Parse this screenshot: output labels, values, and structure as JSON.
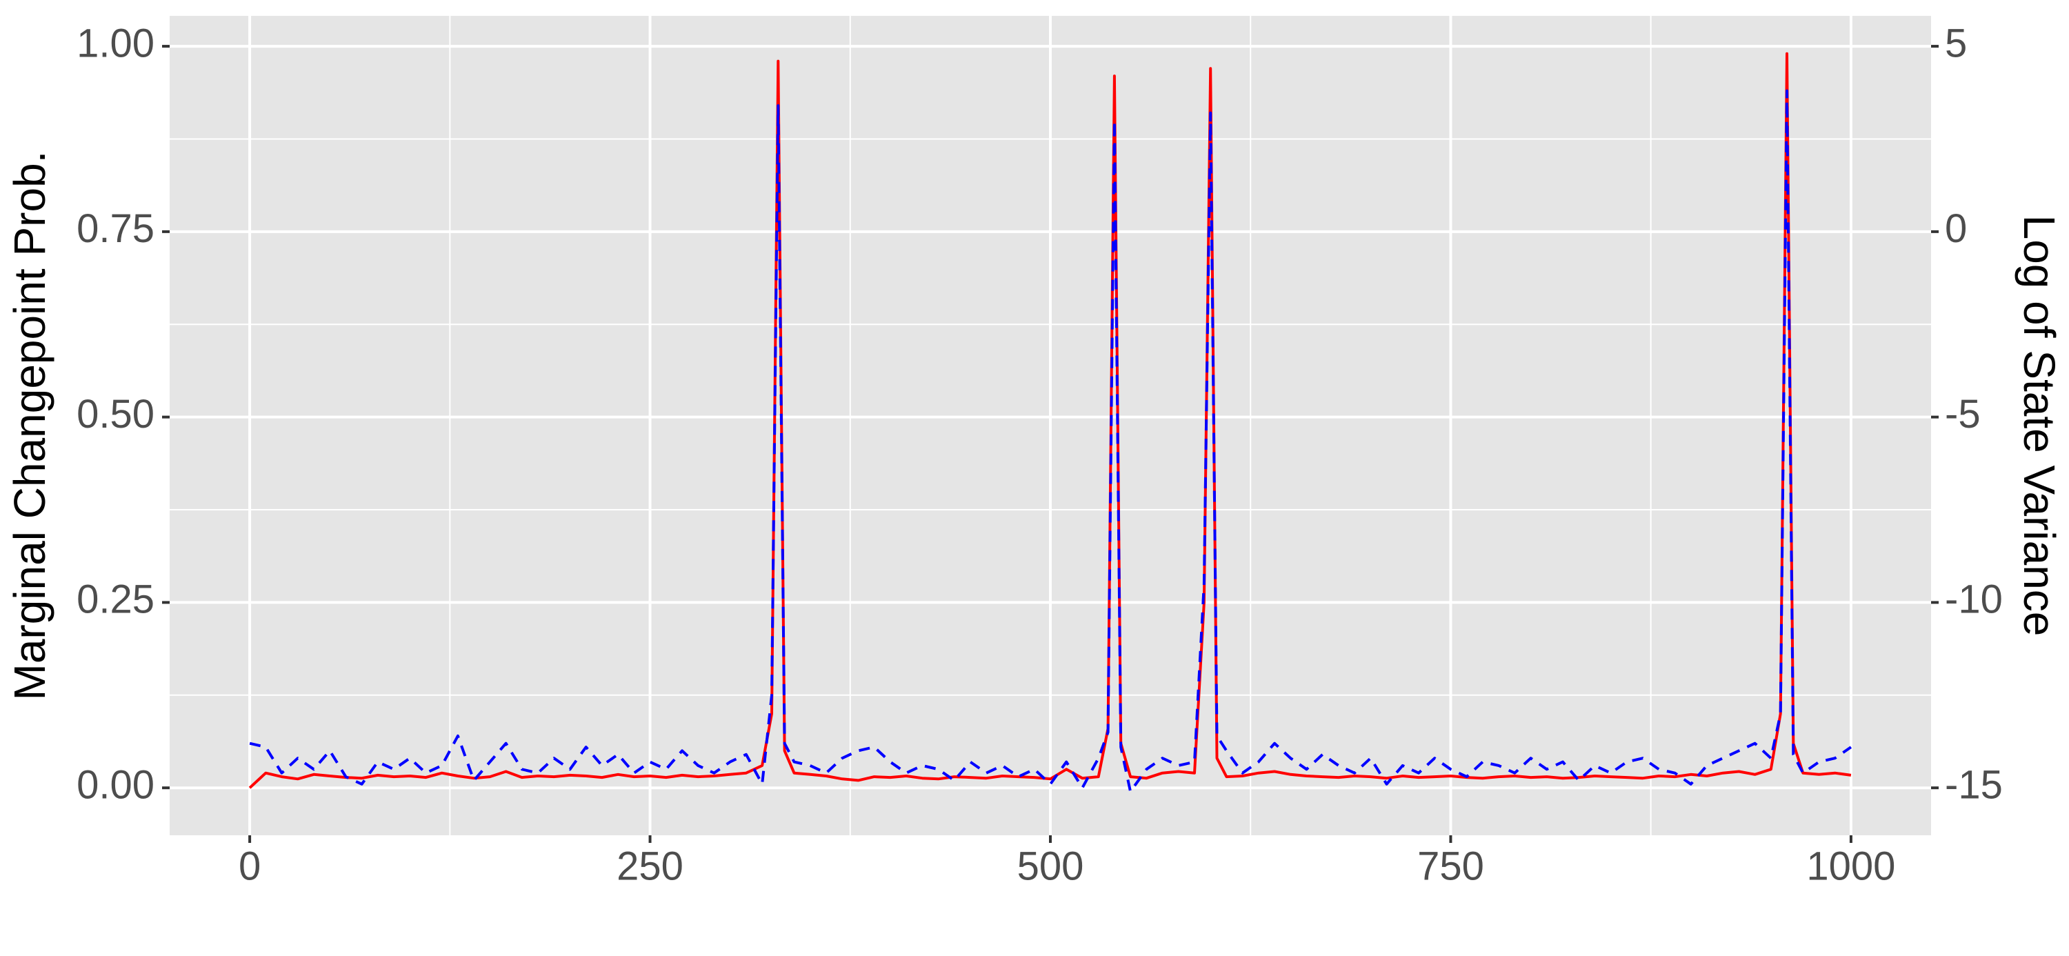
{
  "chart_data": {
    "type": "line",
    "x": [
      0,
      10,
      20,
      30,
      40,
      50,
      60,
      70,
      80,
      90,
      100,
      110,
      120,
      130,
      140,
      150,
      160,
      170,
      180,
      190,
      200,
      210,
      220,
      230,
      240,
      250,
      260,
      270,
      280,
      290,
      300,
      310,
      320,
      326,
      330,
      334,
      340,
      350,
      360,
      370,
      380,
      390,
      400,
      410,
      420,
      430,
      440,
      450,
      460,
      470,
      480,
      490,
      500,
      510,
      520,
      530,
      536,
      540,
      544,
      550,
      560,
      570,
      580,
      590,
      596,
      600,
      604,
      610,
      620,
      630,
      640,
      650,
      660,
      670,
      680,
      690,
      700,
      710,
      720,
      730,
      740,
      750,
      760,
      770,
      780,
      790,
      800,
      810,
      820,
      830,
      840,
      850,
      860,
      870,
      880,
      890,
      900,
      910,
      920,
      930,
      940,
      950,
      956,
      960,
      964,
      970,
      980,
      990,
      1000
    ],
    "series": [
      {
        "color": "#ff0000",
        "linetype": "solid",
        "axis": "y",
        "values": [
          0.0,
          0.02,
          0.015,
          0.012,
          0.018,
          0.016,
          0.014,
          0.013,
          0.017,
          0.015,
          0.016,
          0.014,
          0.02,
          0.016,
          0.013,
          0.015,
          0.022,
          0.014,
          0.016,
          0.015,
          0.017,
          0.016,
          0.014,
          0.018,
          0.015,
          0.016,
          0.014,
          0.017,
          0.015,
          0.016,
          0.018,
          0.02,
          0.03,
          0.1,
          0.98,
          0.05,
          0.02,
          0.018,
          0.016,
          0.012,
          0.01,
          0.015,
          0.014,
          0.016,
          0.013,
          0.012,
          0.015,
          0.014,
          0.013,
          0.016,
          0.015,
          0.014,
          0.012,
          0.025,
          0.013,
          0.015,
          0.08,
          0.96,
          0.06,
          0.015,
          0.013,
          0.02,
          0.022,
          0.02,
          0.25,
          0.97,
          0.04,
          0.015,
          0.016,
          0.02,
          0.022,
          0.018,
          0.016,
          0.015,
          0.014,
          0.016,
          0.015,
          0.013,
          0.016,
          0.014,
          0.015,
          0.016,
          0.014,
          0.013,
          0.015,
          0.016,
          0.014,
          0.015,
          0.013,
          0.014,
          0.016,
          0.015,
          0.014,
          0.013,
          0.016,
          0.015,
          0.018,
          0.016,
          0.02,
          0.022,
          0.018,
          0.025,
          0.1,
          0.99,
          0.06,
          0.02,
          0.018,
          0.02,
          0.017
        ]
      },
      {
        "color": "#0000ff",
        "linetype": "dashed",
        "axis": "y2",
        "values": [
          -13.8,
          -13.9,
          -14.6,
          -14.2,
          -14.5,
          -14.0,
          -14.7,
          -14.9,
          -14.3,
          -14.5,
          -14.2,
          -14.6,
          -14.4,
          -13.6,
          -14.8,
          -14.3,
          -13.8,
          -14.5,
          -14.6,
          -14.2,
          -14.5,
          -13.9,
          -14.4,
          -14.1,
          -14.6,
          -14.3,
          -14.5,
          -14.0,
          -14.4,
          -14.6,
          -14.3,
          -14.1,
          -14.9,
          -12.5,
          3.4,
          -13.8,
          -14.3,
          -14.4,
          -14.6,
          -14.2,
          -14.0,
          -13.9,
          -14.3,
          -14.6,
          -14.4,
          -14.5,
          -14.8,
          -14.3,
          -14.6,
          -14.4,
          -14.7,
          -14.5,
          -14.9,
          -14.3,
          -15.0,
          -14.2,
          -13.5,
          3.0,
          -13.9,
          -15.1,
          -14.5,
          -14.2,
          -14.4,
          -14.3,
          -9.5,
          3.2,
          -13.6,
          -14.0,
          -14.6,
          -14.3,
          -13.8,
          -14.2,
          -14.5,
          -14.1,
          -14.4,
          -14.6,
          -14.2,
          -14.9,
          -14.4,
          -14.6,
          -14.2,
          -14.5,
          -14.7,
          -14.3,
          -14.4,
          -14.6,
          -14.2,
          -14.5,
          -14.3,
          -14.8,
          -14.4,
          -14.6,
          -14.3,
          -14.2,
          -14.5,
          -14.6,
          -14.9,
          -14.4,
          -14.2,
          -14.0,
          -13.8,
          -14.2,
          -13.0,
          3.8,
          -14.1,
          -14.6,
          -14.3,
          -14.2,
          -13.9
        ]
      }
    ],
    "y_label": "Marginal Changepoint Prob.",
    "y2_label": "Log of State Variance",
    "xlim": [
      -50,
      1050
    ],
    "xticks": [
      0,
      250,
      500,
      750,
      1000
    ],
    "ylim": [
      -0.064,
      1.041
    ],
    "yticks": [
      {
        "value": 0,
        "label": "0.00"
      },
      {
        "value": 0.25,
        "label": "0.25"
      },
      {
        "value": 0.5,
        "label": "0.50"
      },
      {
        "value": 0.75,
        "label": "0.75"
      },
      {
        "value": 1,
        "label": "1.00"
      }
    ],
    "y2lim": [
      -16.28,
      5.82
    ],
    "y2ticks": [
      -15,
      -10,
      -5,
      0,
      5
    ],
    "grid": true
  }
}
